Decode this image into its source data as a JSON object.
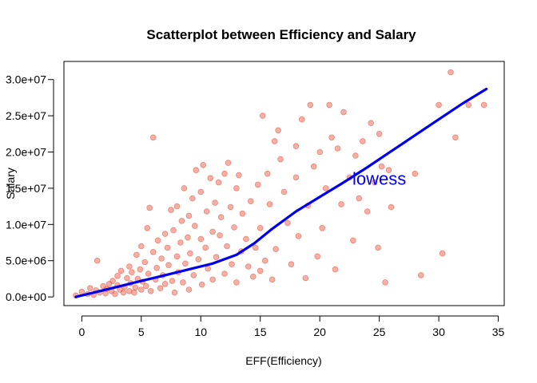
{
  "chart_data": {
    "type": "scatter",
    "title": "Scatterplot between Efficiency and Salary",
    "xlabel": "EFF(Efficiency)",
    "ylabel": "Salary",
    "xlim": [
      -1.5,
      35.5
    ],
    "ylim": [
      -1200000,
      32500000
    ],
    "xticks": [
      0,
      5,
      10,
      15,
      20,
      25,
      30,
      35
    ],
    "xtick_labels": [
      "0",
      "5",
      "10",
      "15",
      "20",
      "25",
      "30",
      "35"
    ],
    "yticks": [
      0,
      5000000,
      10000000,
      15000000,
      20000000,
      25000000,
      30000000
    ],
    "ytick_labels": [
      "0.0e+00",
      "5.0e+06",
      "1.0e+07",
      "1.5e+07",
      "2.0e+07",
      "2.5e+07",
      "3.0e+07"
    ],
    "grid": false,
    "legend": "none",
    "point_color": "#e8503a",
    "line_color": "#0000ee",
    "annotation": {
      "text": "lowess",
      "x": 25,
      "y": 15500000,
      "color": "#0000ee"
    },
    "series": [
      {
        "kind": "points",
        "points": [
          [
            -0.5,
            200000
          ],
          [
            0,
            700000
          ],
          [
            0.5,
            400000
          ],
          [
            0.7,
            1200000
          ],
          [
            1,
            300000
          ],
          [
            1.2,
            900000
          ],
          [
            1.3,
            5000000
          ],
          [
            1.5,
            600000
          ],
          [
            1.8,
            1500000
          ],
          [
            2,
            500000
          ],
          [
            2.1,
            1100000
          ],
          [
            2.3,
            1800000
          ],
          [
            2.5,
            800000
          ],
          [
            2.6,
            2200000
          ],
          [
            2.8,
            400000
          ],
          [
            3,
            1600000
          ],
          [
            3,
            2900000
          ],
          [
            3.2,
            1000000
          ],
          [
            3.3,
            3600000
          ],
          [
            3.5,
            600000
          ],
          [
            3.6,
            1400000
          ],
          [
            3.8,
            2600000
          ],
          [
            4,
            800000
          ],
          [
            4,
            4200000
          ],
          [
            4.1,
            1900000
          ],
          [
            4.2,
            3400000
          ],
          [
            4.4,
            600000
          ],
          [
            4.5,
            1300000
          ],
          [
            4.6,
            5800000
          ],
          [
            4.7,
            2500000
          ],
          [
            4.9,
            3800000
          ],
          [
            5,
            1000000
          ],
          [
            5,
            7000000
          ],
          [
            5.1,
            2100000
          ],
          [
            5.3,
            4800000
          ],
          [
            5.4,
            1500000
          ],
          [
            5.5,
            9500000
          ],
          [
            5.6,
            3200000
          ],
          [
            5.7,
            12300000
          ],
          [
            5.8,
            800000
          ],
          [
            6,
            6200000
          ],
          [
            6,
            22000000
          ],
          [
            6.2,
            2400000
          ],
          [
            6.3,
            4000000
          ],
          [
            6.4,
            7800000
          ],
          [
            6.6,
            1200000
          ],
          [
            6.7,
            5300000
          ],
          [
            6.8,
            3000000
          ],
          [
            7,
            8700000
          ],
          [
            7,
            1800000
          ],
          [
            7.2,
            6800000
          ],
          [
            7.3,
            4400000
          ],
          [
            7.5,
            12000000
          ],
          [
            7.6,
            2200000
          ],
          [
            7.7,
            9200000
          ],
          [
            7.8,
            600000
          ],
          [
            8,
            5600000
          ],
          [
            8,
            12500000
          ],
          [
            8.1,
            3400000
          ],
          [
            8.3,
            7500000
          ],
          [
            8.4,
            10500000
          ],
          [
            8.5,
            2000000
          ],
          [
            8.6,
            15000000
          ],
          [
            8.7,
            4600000
          ],
          [
            8.9,
            8200000
          ],
          [
            9,
            1000000
          ],
          [
            9,
            11200000
          ],
          [
            9.1,
            6000000
          ],
          [
            9.3,
            13600000
          ],
          [
            9.4,
            3000000
          ],
          [
            9.5,
            9800000
          ],
          [
            9.6,
            17500000
          ],
          [
            9.8,
            5200000
          ],
          [
            10,
            8000000
          ],
          [
            10,
            14500000
          ],
          [
            10.1,
            1700000
          ],
          [
            10.2,
            18200000
          ],
          [
            10.4,
            6800000
          ],
          [
            10.5,
            11800000
          ],
          [
            10.6,
            3900000
          ],
          [
            10.8,
            16400000
          ],
          [
            11,
            9000000
          ],
          [
            11,
            2400000
          ],
          [
            11.2,
            13000000
          ],
          [
            11.3,
            5500000
          ],
          [
            11.5,
            15800000
          ],
          [
            11.6,
            8500000
          ],
          [
            11.7,
            11000000
          ],
          [
            12,
            3200000
          ],
          [
            12,
            17000000
          ],
          [
            12.2,
            7000000
          ],
          [
            12.3,
            18500000
          ],
          [
            12.5,
            12400000
          ],
          [
            12.6,
            4500000
          ],
          [
            12.8,
            9600000
          ],
          [
            13,
            15000000
          ],
          [
            13,
            2000000
          ],
          [
            13.2,
            16800000
          ],
          [
            13.4,
            6300000
          ],
          [
            13.5,
            11500000
          ],
          [
            13.8,
            8000000
          ],
          [
            14,
            4200000
          ],
          [
            14.2,
            13200000
          ],
          [
            14.4,
            2800000
          ],
          [
            14.6,
            6800000
          ],
          [
            14.8,
            15500000
          ],
          [
            15,
            3600000
          ],
          [
            15,
            9500000
          ],
          [
            15.2,
            25000000
          ],
          [
            15.4,
            5000000
          ],
          [
            15.6,
            17000000
          ],
          [
            15.8,
            12800000
          ],
          [
            16,
            2400000
          ],
          [
            16.2,
            21500000
          ],
          [
            16.3,
            6600000
          ],
          [
            16.5,
            23000000
          ],
          [
            16.7,
            19000000
          ],
          [
            17,
            14500000
          ],
          [
            17.3,
            10200000
          ],
          [
            17.6,
            4500000
          ],
          [
            18,
            16500000
          ],
          [
            18,
            20800000
          ],
          [
            18.2,
            8400000
          ],
          [
            18.5,
            24500000
          ],
          [
            18.8,
            2600000
          ],
          [
            19,
            12600000
          ],
          [
            19.2,
            26500000
          ],
          [
            19.5,
            18000000
          ],
          [
            19.8,
            5600000
          ],
          [
            20,
            20000000
          ],
          [
            20.2,
            9500000
          ],
          [
            20.5,
            15000000
          ],
          [
            20.8,
            26500000
          ],
          [
            21,
            22000000
          ],
          [
            21.3,
            3800000
          ],
          [
            21.5,
            20500000
          ],
          [
            21.8,
            12800000
          ],
          [
            22,
            25500000
          ],
          [
            22.5,
            16500000
          ],
          [
            22.8,
            7800000
          ],
          [
            23,
            19500000
          ],
          [
            23.3,
            13600000
          ],
          [
            23.6,
            21500000
          ],
          [
            24,
            11800000
          ],
          [
            24.3,
            24000000
          ],
          [
            24.6,
            15800000
          ],
          [
            24.9,
            6800000
          ],
          [
            25,
            22500000
          ],
          [
            25.2,
            18000000
          ],
          [
            25.5,
            2000000
          ],
          [
            25.8,
            17500000
          ],
          [
            26,
            12400000
          ],
          [
            28,
            17000000
          ],
          [
            28.5,
            3000000
          ],
          [
            30,
            26500000
          ],
          [
            30.3,
            6000000
          ],
          [
            31,
            31000000
          ],
          [
            31.4,
            22000000
          ],
          [
            32.5,
            26500000
          ],
          [
            33.8,
            26500000
          ]
        ]
      },
      {
        "kind": "lowess",
        "points": [
          [
            -0.5,
            0
          ],
          [
            1,
            600000
          ],
          [
            3,
            1400000
          ],
          [
            5,
            2200000
          ],
          [
            7,
            3000000
          ],
          [
            9,
            3800000
          ],
          [
            11,
            4600000
          ],
          [
            13,
            5800000
          ],
          [
            14.5,
            7400000
          ],
          [
            16,
            9400000
          ],
          [
            18,
            11800000
          ],
          [
            20,
            13800000
          ],
          [
            22,
            15800000
          ],
          [
            24,
            17900000
          ],
          [
            26,
            20100000
          ],
          [
            28,
            22300000
          ],
          [
            30,
            24500000
          ],
          [
            32,
            26700000
          ],
          [
            34,
            28700000
          ]
        ]
      }
    ]
  }
}
